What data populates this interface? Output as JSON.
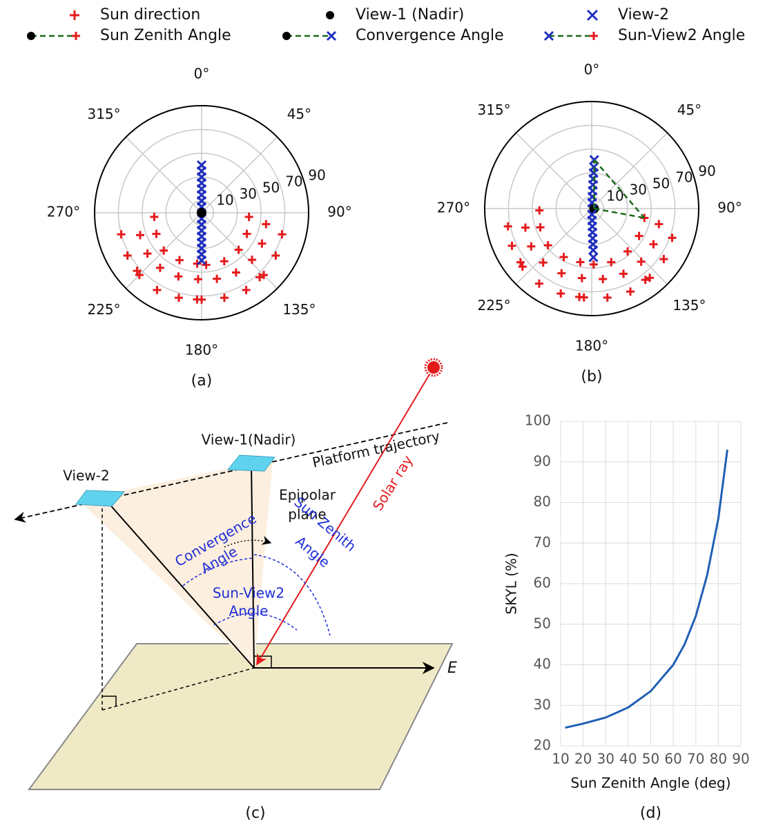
{
  "chart_data": [
    {
      "type": "polar",
      "caption": "(a)",
      "rlim": [
        0,
        90
      ],
      "rticks": [
        10,
        30,
        50,
        70,
        90
      ],
      "thetaticks": [
        {
          "value": 0,
          "label": "0°"
        },
        {
          "value": 45,
          "label": "45°"
        },
        {
          "value": 90,
          "label": "90°"
        },
        {
          "value": 135,
          "label": "135°"
        },
        {
          "value": 180,
          "label": "180°"
        },
        {
          "value": 225,
          "label": "225°"
        },
        {
          "value": 270,
          "label": "270°"
        },
        {
          "value": 315,
          "label": "315°"
        }
      ],
      "grid": true,
      "series": [
        {
          "marker": "+",
          "color": "#e41a1c",
          "theta": [
            105,
            120,
            135,
            150,
            165,
            180,
            195,
            210,
            225,
            240,
            255,
            100,
            117,
            133,
            150,
            167,
            183,
            200,
            217,
            233,
            250,
            95,
            115,
            135,
            155,
            175,
            185,
            205,
            225,
            245,
            265,
            138,
            183,
            228
          ],
          "r": [
            70,
            72,
            74,
            75,
            74,
            73,
            74,
            75,
            74,
            72,
            70,
            55,
            57,
            58,
            58,
            57,
            56,
            57,
            58,
            57,
            55,
            40,
            42,
            44,
            45,
            44,
            43,
            44,
            45,
            42,
            40,
            73,
            73,
            73
          ]
        },
        {
          "marker": "x",
          "color": "#1f2fbf",
          "theta": [
            0,
            0,
            0,
            0,
            0,
            0,
            0,
            0,
            180,
            180,
            180,
            180,
            180,
            180,
            180,
            180
          ],
          "r": [
            5,
            10,
            15,
            20,
            25,
            30,
            35,
            40,
            5,
            10,
            15,
            20,
            25,
            30,
            35,
            40
          ]
        },
        {
          "marker": "o",
          "color": "#000000",
          "theta": [
            0
          ],
          "r": [
            0
          ]
        }
      ]
    },
    {
      "type": "polar",
      "caption": "(b)",
      "rlim": [
        0,
        90
      ],
      "rticks": [
        10,
        30,
        50,
        70,
        90
      ],
      "thetaticks": [
        {
          "value": 0,
          "label": "0°"
        },
        {
          "value": 45,
          "label": "45°"
        },
        {
          "value": 90,
          "label": "90°"
        },
        {
          "value": 135,
          "label": "135°"
        },
        {
          "value": 180,
          "label": "180°"
        },
        {
          "value": 225,
          "label": "225°"
        },
        {
          "value": 270,
          "label": "270°"
        },
        {
          "value": 315,
          "label": "315°"
        }
      ],
      "grid": true,
      "series": [
        {
          "name": "Sun direction",
          "marker": "+",
          "color": "#e41a1c",
          "theta": [
            110,
            125,
            140,
            155,
            170,
            185,
            200,
            215,
            230,
            245,
            258,
            103,
            120,
            137,
            154,
            171,
            188,
            205,
            222,
            238,
            254,
            100,
            120,
            140,
            160,
            178,
            192,
            210,
            230,
            250,
            268,
            143,
            188,
            233
          ],
          "r": [
            72,
            74,
            76,
            77,
            76,
            75,
            76,
            77,
            76,
            74,
            72,
            58,
            60,
            61,
            61,
            60,
            59,
            60,
            61,
            60,
            58,
            45,
            46,
            47,
            48,
            47,
            46,
            47,
            48,
            46,
            44,
            75,
            75,
            75
          ]
        },
        {
          "name": "View-1 (Nadir)",
          "marker": "o",
          "color": "#000000",
          "theta": [
            90
          ],
          "r": [
            2
          ]
        },
        {
          "name": "View-2",
          "marker": "x",
          "color": "#1f2fbf",
          "theta": [
            3,
            3,
            3,
            3,
            3,
            3,
            3,
            3,
            178,
            178,
            178,
            178,
            178,
            178,
            178,
            178
          ],
          "r": [
            5,
            10,
            15,
            20,
            25,
            30,
            35,
            41,
            5,
            10,
            15,
            20,
            25,
            30,
            35,
            41
          ]
        },
        {
          "name": "Sun Zenith Angle",
          "linestyle": "dashed",
          "color": "#1a6b1a",
          "markers": [
            "o",
            "+"
          ],
          "marker_colors": [
            "#000000",
            "#e41a1c"
          ],
          "theta": [
            90,
            100
          ],
          "r": [
            2,
            45
          ]
        },
        {
          "name": "Convergence Angle",
          "linestyle": "dashed",
          "color": "#1a6b1a",
          "markers": [
            "o",
            "x"
          ],
          "marker_colors": [
            "#000000",
            "#1f2fbf"
          ],
          "theta": [
            90,
            3
          ],
          "r": [
            2,
            41
          ]
        },
        {
          "name": "Sun-View2 Angle",
          "linestyle": "dashed",
          "color": "#1a6b1a",
          "markers": [
            "x",
            "+"
          ],
          "marker_colors": [
            "#1f2fbf",
            "#e41a1c"
          ],
          "theta": [
            3,
            100
          ],
          "r": [
            41,
            45
          ]
        }
      ]
    },
    {
      "type": "line",
      "caption": "(d)",
      "xlabel": "Sun Zenith Angle (deg)",
      "ylabel": "SKYL (%)",
      "x": [
        12,
        20,
        30,
        40,
        50,
        60,
        65,
        70,
        75,
        80,
        84
      ],
      "values": [
        24.5,
        25.5,
        27,
        29.5,
        33.5,
        40,
        45,
        52,
        62,
        76,
        93
      ],
      "color": "#1f5fb4",
      "xlim": [
        10,
        90
      ],
      "ylim": [
        20,
        100
      ],
      "xticks": [
        10,
        20,
        30,
        40,
        50,
        60,
        70,
        80,
        90
      ],
      "yticks": [
        20,
        30,
        40,
        50,
        60,
        70,
        80,
        90,
        100
      ],
      "grid": true
    }
  ],
  "diagram": {
    "caption": "(c)",
    "view1": "View-1(Nadir)",
    "view2": "View-2",
    "trajectory": "Platform trajectory",
    "epipolar": [
      "Epipolar",
      "plane"
    ],
    "convergence": [
      "Convergence",
      "Angle"
    ],
    "sun_zenith": [
      "Sun Zenith",
      "Angle"
    ],
    "solar_ray": "Solar ray",
    "sun_view2": [
      "Sun-View2",
      "Angle"
    ],
    "east": "E"
  }
}
